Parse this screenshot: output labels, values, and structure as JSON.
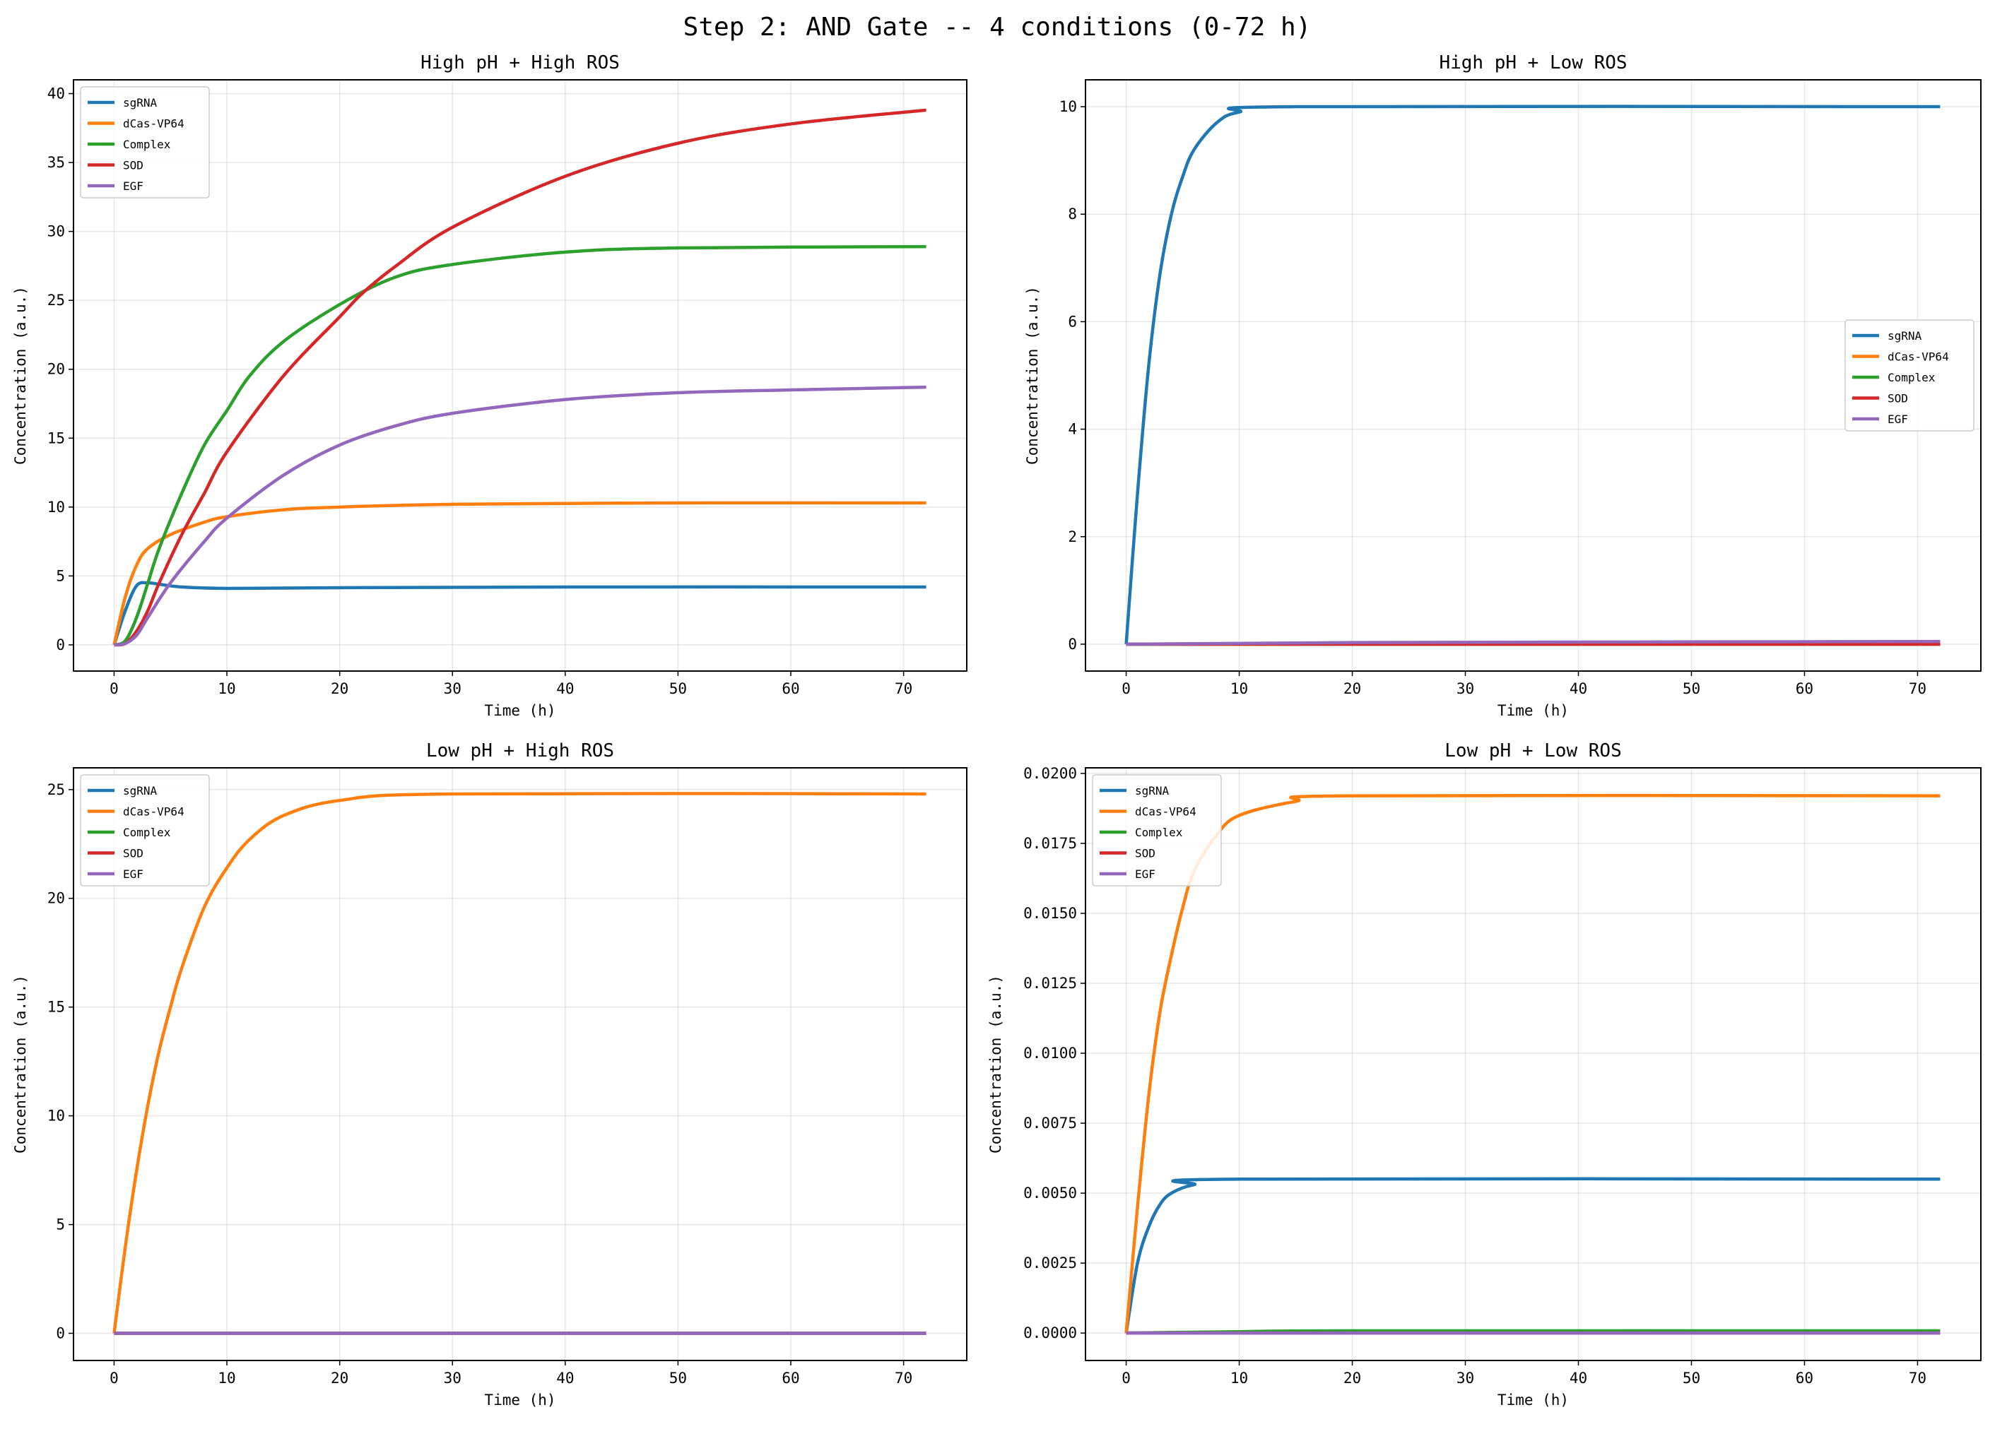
{
  "suptitle": "Step 2: AND Gate -- 4 conditions (0-72 h)",
  "colors": {
    "sgRNA": "#1f77b4",
    "dCas-VP64": "#ff7f0e",
    "Complex": "#2ca02c",
    "SOD": "#d62728",
    "EGF": "#9467bd"
  },
  "chart_data": [
    {
      "type": "line",
      "title": "High pH + High ROS",
      "xlabel": "Time (h)",
      "ylabel": "Concentration (a.u.)",
      "xlim": [
        -3.6,
        75.6
      ],
      "ylim": [
        -1.9,
        41
      ],
      "xticks": [
        0,
        10,
        20,
        30,
        40,
        50,
        60,
        70
      ],
      "yticks": [
        0,
        5,
        10,
        15,
        20,
        25,
        30,
        35,
        40
      ],
      "ytick_labels": [
        "0",
        "5",
        "10",
        "15",
        "20",
        "25",
        "30",
        "35",
        "40"
      ],
      "grid": true,
      "legend": "upper-left",
      "series": [
        {
          "name": "sgRNA",
          "x": [
            0,
            1,
            2,
            3,
            4,
            6,
            10,
            20,
            40,
            72
          ],
          "y": [
            0,
            2.5,
            4.3,
            4.5,
            4.4,
            4.2,
            4.1,
            4.15,
            4.2,
            4.2
          ]
        },
        {
          "name": "dCas-VP64",
          "x": [
            0,
            1,
            2,
            3,
            5,
            8,
            10,
            15,
            20,
            30,
            50,
            72
          ],
          "y": [
            0,
            3.5,
            5.8,
            7,
            8,
            8.9,
            9.3,
            9.8,
            10,
            10.2,
            10.3,
            10.3
          ]
        },
        {
          "name": "Complex",
          "x": [
            0,
            1,
            2,
            3,
            4,
            6,
            8,
            10,
            12,
            15,
            20,
            25,
            30,
            40,
            50,
            72
          ],
          "y": [
            0,
            0.3,
            2,
            4.5,
            7,
            11,
            14.5,
            17,
            19.5,
            22,
            24.7,
            26.7,
            27.6,
            28.5,
            28.8,
            28.9
          ]
        },
        {
          "name": "SOD",
          "x": [
            0,
            1,
            2,
            3,
            4,
            6,
            8,
            10,
            15,
            20,
            22,
            25,
            30,
            40,
            50,
            60,
            72
          ],
          "y": [
            0,
            0.1,
            1,
            2.5,
            4.5,
            8,
            11,
            14,
            19.5,
            23.8,
            25.5,
            27.5,
            30.3,
            34,
            36.4,
            37.8,
            38.8
          ]
        },
        {
          "name": "EGF",
          "x": [
            0,
            1,
            2,
            3,
            5,
            8,
            10,
            15,
            20,
            25,
            30,
            40,
            50,
            60,
            72
          ],
          "y": [
            0,
            0.1,
            0.7,
            2,
            4.5,
            7.5,
            9.2,
            12.3,
            14.5,
            15.9,
            16.8,
            17.8,
            18.3,
            18.5,
            18.7
          ]
        }
      ]
    },
    {
      "type": "line",
      "title": "High pH + Low ROS",
      "xlabel": "Time (h)",
      "ylabel": "Concentration (a.u.)",
      "xlim": [
        -3.6,
        75.6
      ],
      "ylim": [
        -0.5,
        10.5
      ],
      "xticks": [
        0,
        10,
        20,
        30,
        40,
        50,
        60,
        70
      ],
      "yticks": [
        0,
        2,
        4,
        6,
        8,
        10
      ],
      "ytick_labels": [
        "0",
        "2",
        "4",
        "6",
        "8",
        "10"
      ],
      "grid": true,
      "legend": "center-right",
      "series": [
        {
          "name": "sgRNA",
          "x": [
            0,
            1,
            2,
            3,
            4,
            5,
            6,
            8,
            10,
            15,
            72
          ],
          "y": [
            0,
            2.8,
            5.2,
            6.9,
            8,
            8.7,
            9.2,
            9.7,
            9.9,
            10,
            10
          ]
        },
        {
          "name": "dCas-VP64",
          "x": [
            0,
            72
          ],
          "y": [
            0,
            0.02
          ]
        },
        {
          "name": "Complex",
          "x": [
            0,
            72
          ],
          "y": [
            0,
            0
          ]
        },
        {
          "name": "SOD",
          "x": [
            0,
            72
          ],
          "y": [
            0,
            0
          ]
        },
        {
          "name": "EGF",
          "x": [
            0,
            20,
            72
          ],
          "y": [
            0,
            0.03,
            0.05
          ]
        }
      ]
    },
    {
      "type": "line",
      "title": "Low pH + High ROS",
      "xlabel": "Time (h)",
      "ylabel": "Concentration (a.u.)",
      "xlim": [
        -3.6,
        75.6
      ],
      "ylim": [
        -1.25,
        26
      ],
      "xticks": [
        0,
        10,
        20,
        30,
        40,
        50,
        60,
        70
      ],
      "yticks": [
        0,
        5,
        10,
        15,
        20,
        25
      ],
      "ytick_labels": [
        "0",
        "5",
        "10",
        "15",
        "20",
        "25"
      ],
      "grid": true,
      "legend": "upper-left",
      "series": [
        {
          "name": "sgRNA",
          "x": [
            0,
            72
          ],
          "y": [
            0,
            0
          ]
        },
        {
          "name": "dCas-VP64",
          "x": [
            0,
            1,
            2,
            3,
            4,
            5,
            6,
            8,
            10,
            12,
            15,
            20,
            30,
            72
          ],
          "y": [
            0,
            4,
            7.5,
            10.5,
            13,
            15,
            16.8,
            19.6,
            21.4,
            22.7,
            23.8,
            24.5,
            24.8,
            24.8
          ]
        },
        {
          "name": "Complex",
          "x": [
            0,
            72
          ],
          "y": [
            0,
            0
          ]
        },
        {
          "name": "SOD",
          "x": [
            0,
            72
          ],
          "y": [
            0,
            0
          ]
        },
        {
          "name": "EGF",
          "x": [
            0,
            72
          ],
          "y": [
            0,
            0
          ]
        }
      ]
    },
    {
      "type": "line",
      "title": "Low pH + Low ROS",
      "xlabel": "Time (h)",
      "ylabel": "Concentration (a.u.)",
      "xlim": [
        -3.6,
        75.6
      ],
      "ylim": [
        -0.00098,
        0.0202
      ],
      "xticks": [
        0,
        10,
        20,
        30,
        40,
        50,
        60,
        70
      ],
      "yticks": [
        0,
        0.0025,
        0.005,
        0.0075,
        0.01,
        0.0125,
        0.015,
        0.0175,
        0.02
      ],
      "ytick_labels": [
        "0.0000",
        "0.0025",
        "0.0050",
        "0.0075",
        "0.0100",
        "0.0125",
        "0.0150",
        "0.0175",
        "0.0200"
      ],
      "grid": true,
      "legend": "upper-left",
      "series": [
        {
          "name": "sgRNA",
          "x": [
            0,
            1,
            2,
            3,
            4,
            6,
            10,
            72
          ],
          "y": [
            0,
            0.0025,
            0.0038,
            0.0046,
            0.005,
            0.0053,
            0.0055,
            0.0055
          ]
        },
        {
          "name": "dCas-VP64",
          "x": [
            0,
            1,
            2,
            3,
            4,
            5,
            6,
            8,
            10,
            15,
            20,
            72
          ],
          "y": [
            0,
            0.0045,
            0.0085,
            0.0115,
            0.0135,
            0.0152,
            0.0165,
            0.0178,
            0.0185,
            0.019,
            0.0192,
            0.0192
          ]
        },
        {
          "name": "Complex",
          "x": [
            0,
            10,
            20,
            72
          ],
          "y": [
            0,
            5e-05,
            8e-05,
            8e-05
          ]
        },
        {
          "name": "SOD",
          "x": [
            0,
            72
          ],
          "y": [
            0,
            0
          ]
        },
        {
          "name": "EGF",
          "x": [
            0,
            72
          ],
          "y": [
            0,
            0
          ]
        }
      ]
    }
  ]
}
